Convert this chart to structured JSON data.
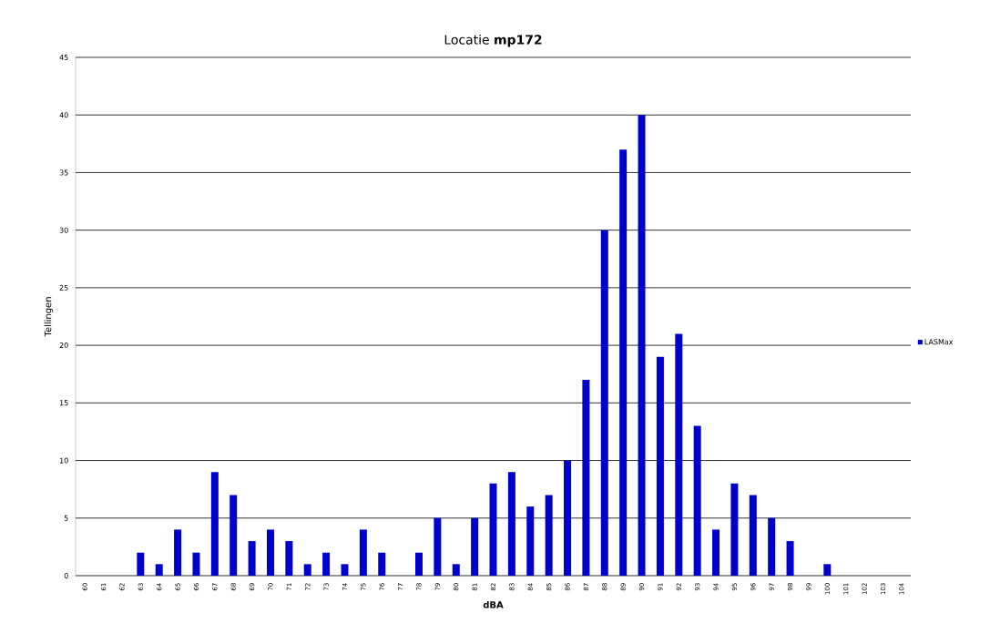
{
  "chart_data": {
    "type": "bar",
    "title": "Locatie **mp172**",
    "xlabel": "dBA",
    "ylabel": "Tellingen",
    "categories": [
      "60",
      "61",
      "62",
      "63",
      "64",
      "65",
      "66",
      "67",
      "68",
      "69",
      "70",
      "71",
      "72",
      "73",
      "74",
      "75",
      "76",
      "77",
      "78",
      "79",
      "80",
      "81",
      "82",
      "83",
      "84",
      "85",
      "86",
      "87",
      "88",
      "89",
      "90",
      "91",
      "92",
      "93",
      "94",
      "95",
      "96",
      "97",
      "98",
      "99",
      "100",
      "101",
      "102",
      "103",
      "104"
    ],
    "series": [
      {
        "name": "LASMax",
        "color": "#0000cc",
        "values": [
          0,
          0,
          0,
          2,
          1,
          4,
          2,
          9,
          7,
          3,
          4,
          3,
          1,
          2,
          1,
          4,
          2,
          0,
          2,
          5,
          1,
          5,
          8,
          9,
          6,
          7,
          10,
          17,
          30,
          37,
          40,
          19,
          21,
          13,
          4,
          8,
          7,
          5,
          3,
          0,
          1,
          0,
          0,
          0,
          0
        ]
      }
    ],
    "ylim": [
      0,
      45
    ],
    "yticks": [
      0,
      5,
      10,
      15,
      20,
      25,
      30,
      35,
      40,
      45
    ],
    "grid": "y",
    "legend": "right"
  }
}
